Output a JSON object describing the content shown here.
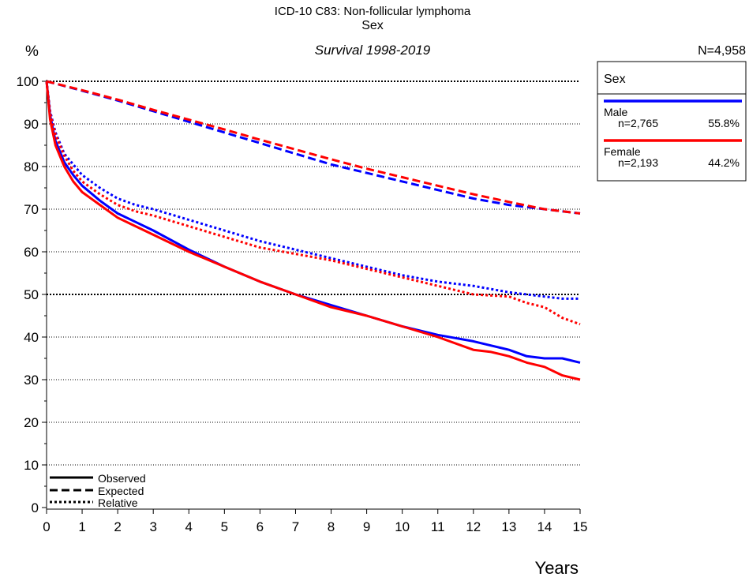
{
  "header": {
    "line1": "ICD-10 C83: Non-follicular lymphoma",
    "line2": "Sex",
    "line3": "Survival 1998-2019",
    "y_unit": "%",
    "total_n": "N=4,958"
  },
  "legend": {
    "title": "Sex",
    "groups": [
      {
        "name": "Male",
        "n": "n=2,765",
        "pct": "55.8%",
        "color": "#0000ff"
      },
      {
        "name": "Female",
        "n": "n=2,193",
        "pct": "44.2%",
        "color": "#ff0000"
      }
    ],
    "line_styles": {
      "observed": "Observed",
      "expected": "Expected",
      "relative": "Relative"
    }
  },
  "chart_data": {
    "type": "line",
    "xlabel": "Years",
    "ylabel": "%",
    "xlim": [
      0,
      15
    ],
    "ylim": [
      0,
      100
    ],
    "x_ticks": [
      "0",
      "1",
      "2",
      "3",
      "4",
      "5",
      "6",
      "7",
      "8",
      "9",
      "10",
      "11",
      "12",
      "13",
      "14",
      "15"
    ],
    "y_ticks": [
      "0",
      "10",
      "20",
      "30",
      "40",
      "50",
      "60",
      "70",
      "80",
      "90",
      "100"
    ],
    "grid": "horizontal dotted, bold at 50 and 100",
    "series": [
      {
        "name": "Male",
        "style": "observed",
        "color": "#0000ff",
        "x": [
          0,
          0.1,
          0.25,
          0.5,
          0.75,
          1,
          1.5,
          2,
          2.5,
          3,
          4,
          5,
          6,
          7,
          8,
          9,
          10,
          11,
          12,
          12.5,
          13,
          13.5,
          14,
          14.5,
          15
        ],
        "y": [
          100,
          92,
          86,
          81,
          78,
          75.5,
          72,
          69,
          67,
          65,
          60.5,
          56.5,
          53,
          50,
          47.5,
          45,
          42.5,
          40.5,
          39,
          38,
          37,
          35.5,
          35,
          35,
          34
        ]
      },
      {
        "name": "Female",
        "style": "observed",
        "color": "#ff0000",
        "x": [
          0,
          0.1,
          0.25,
          0.5,
          0.75,
          1,
          1.5,
          2,
          2.5,
          3,
          4,
          5,
          6,
          7,
          8,
          9,
          10,
          11,
          12,
          12.5,
          13,
          13.5,
          14,
          14.5,
          15
        ],
        "y": [
          100,
          91,
          85,
          80,
          76.5,
          74,
          71,
          68,
          66,
          64,
          60,
          56.5,
          53,
          50,
          47,
          45,
          42.5,
          40,
          37,
          36.5,
          35.5,
          34,
          33,
          31,
          30
        ]
      },
      {
        "name": "Male",
        "style": "expected",
        "color": "#0000ff",
        "x": [
          0,
          1,
          2,
          3,
          4,
          5,
          6,
          7,
          8,
          9,
          10,
          11,
          12,
          13,
          14,
          15
        ],
        "y": [
          100,
          97.8,
          95.5,
          93,
          90.5,
          88,
          85.5,
          83,
          80.5,
          78.5,
          76.5,
          74.5,
          72.5,
          71,
          70,
          69
        ]
      },
      {
        "name": "Female",
        "style": "expected",
        "color": "#ff0000",
        "x": [
          0,
          1,
          2,
          3,
          4,
          5,
          6,
          7,
          8,
          9,
          10,
          11,
          12,
          13,
          14,
          15
        ],
        "y": [
          100,
          97.9,
          95.7,
          93.3,
          91,
          88.7,
          86.3,
          84,
          81.7,
          79.5,
          77.5,
          75.5,
          73.5,
          71.7,
          70,
          69
        ]
      },
      {
        "name": "Male",
        "style": "relative",
        "color": "#0000ff",
        "x": [
          0,
          0.1,
          0.25,
          0.5,
          0.75,
          1,
          1.5,
          2,
          2.5,
          3,
          4,
          5,
          6,
          7,
          8,
          9,
          10,
          11,
          12,
          13,
          14,
          14.5,
          15
        ],
        "y": [
          100,
          93,
          88,
          83,
          80.5,
          78,
          75,
          72.5,
          71,
          70,
          67.5,
          65,
          62.5,
          60.5,
          58.5,
          56.5,
          54.5,
          53,
          52,
          50.5,
          49.5,
          49,
          49
        ]
      },
      {
        "name": "Female",
        "style": "relative",
        "color": "#ff0000",
        "x": [
          0,
          0.1,
          0.25,
          0.5,
          0.75,
          1,
          1.5,
          2,
          2.5,
          3,
          4,
          5,
          6,
          7,
          8,
          9,
          10,
          11,
          12,
          13,
          13.5,
          14,
          14.5,
          15
        ],
        "y": [
          100,
          92.5,
          87.5,
          82.5,
          79,
          76.5,
          73.5,
          71,
          69.5,
          68.5,
          66,
          63.5,
          61,
          59.5,
          58,
          56,
          54,
          52,
          50,
          49.5,
          48,
          47,
          44.5,
          43
        ]
      }
    ]
  }
}
